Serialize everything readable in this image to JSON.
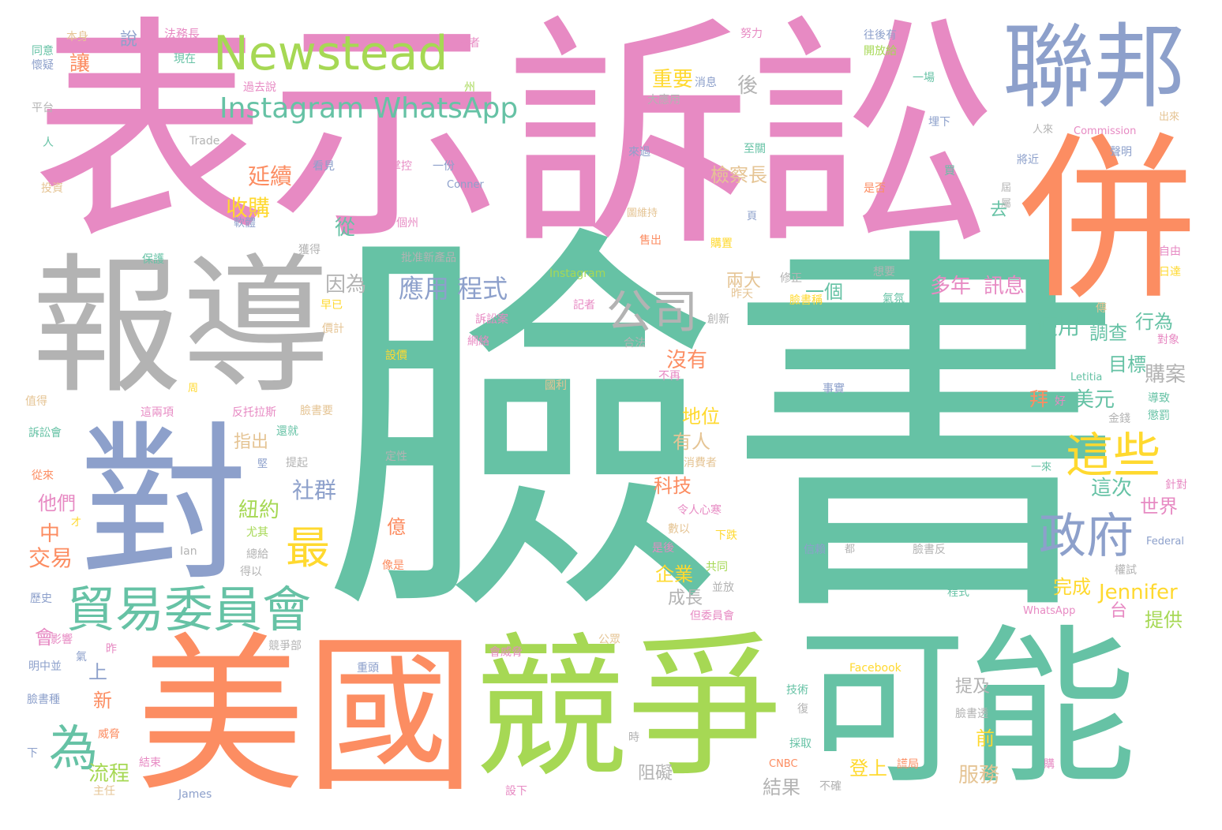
{
  "colors": {
    "teal": "#66c2a5",
    "orange": "#fc8d62",
    "blue": "#8da0cb",
    "pink": "#e78ac3",
    "green": "#a6d854",
    "yellow": "#ffd92f",
    "tan": "#e5c494",
    "gray": "#b3b3b3"
  },
  "words": [
    {
      "text": "臉書",
      "color": "teal"
    },
    {
      "text": "表示",
      "color": "pink"
    },
    {
      "text": "訴訟",
      "color": "pink"
    },
    {
      "text": "報導",
      "color": "gray"
    },
    {
      "text": "美國",
      "color": "orange"
    },
    {
      "text": "競爭",
      "color": "green"
    },
    {
      "text": "可能",
      "color": "teal"
    },
    {
      "text": "併",
      "color": "orange"
    },
    {
      "text": "對",
      "color": "blue"
    },
    {
      "text": "聯邦",
      "color": "blue"
    },
    {
      "text": "Newstead",
      "color": "green"
    },
    {
      "text": "Instagram WhatsApp",
      "color": "teal"
    },
    {
      "text": "公司",
      "color": "gray"
    },
    {
      "text": "貿易委員會",
      "color": "teal"
    },
    {
      "text": "政府",
      "color": "blue"
    },
    {
      "text": "這些",
      "color": "yellow"
    },
    {
      "text": "為",
      "color": "teal"
    },
    {
      "text": "最",
      "color": "yellow"
    },
    {
      "text": "應用 程式",
      "color": "blue"
    },
    {
      "text": "Jennifer",
      "color": "yellow"
    },
    {
      "text": "延續",
      "color": "orange"
    },
    {
      "text": "收購",
      "color": "yellow"
    },
    {
      "text": "檢察長",
      "color": "tan"
    },
    {
      "text": "重要",
      "color": "yellow"
    },
    {
      "text": "因為",
      "color": "gray"
    },
    {
      "text": "多年",
      "color": "pink"
    },
    {
      "text": "訊息",
      "color": "pink"
    },
    {
      "text": "使用",
      "color": "teal"
    },
    {
      "text": "調查",
      "color": "teal"
    },
    {
      "text": "行為",
      "color": "teal"
    },
    {
      "text": "目標",
      "color": "teal"
    },
    {
      "text": "購案",
      "color": "gray"
    },
    {
      "text": "美元",
      "color": "teal"
    },
    {
      "text": "地位",
      "color": "yellow"
    },
    {
      "text": "有人",
      "color": "tan"
    },
    {
      "text": "社群",
      "color": "blue"
    },
    {
      "text": "紐約",
      "color": "green"
    },
    {
      "text": "科技",
      "color": "orange"
    },
    {
      "text": "企業",
      "color": "yellow"
    },
    {
      "text": "成長",
      "color": "gray"
    },
    {
      "text": "完成",
      "color": "yellow"
    },
    {
      "text": "提供",
      "color": "green"
    },
    {
      "text": "世界",
      "color": "pink"
    },
    {
      "text": "這次",
      "color": "teal"
    },
    {
      "text": "沒有",
      "color": "orange"
    },
    {
      "text": "兩大",
      "color": "tan"
    },
    {
      "text": "一個",
      "color": "teal"
    },
    {
      "text": "交易",
      "color": "orange"
    },
    {
      "text": "他們",
      "color": "pink"
    },
    {
      "text": "流程",
      "color": "green"
    },
    {
      "text": "服務",
      "color": "tan"
    },
    {
      "text": "登上",
      "color": "yellow"
    },
    {
      "text": "結果",
      "color": "gray"
    },
    {
      "text": "阻礙",
      "color": "gray"
    },
    {
      "text": "指出",
      "color": "tan"
    },
    {
      "text": "從",
      "color": "teal"
    },
    {
      "text": "讓",
      "color": "orange"
    },
    {
      "text": "後",
      "color": "gray"
    },
    {
      "text": "中",
      "color": "orange"
    },
    {
      "text": "上",
      "color": "blue"
    },
    {
      "text": "新",
      "color": "orange"
    },
    {
      "text": "會",
      "color": "pink"
    },
    {
      "text": "億",
      "color": "orange"
    },
    {
      "text": "前",
      "color": "yellow"
    },
    {
      "text": "提及",
      "color": "gray"
    },
    {
      "text": "去",
      "color": "teal"
    },
    {
      "text": "拜",
      "color": "orange"
    },
    {
      "text": "台",
      "color": "pink"
    },
    {
      "text": "說",
      "color": "blue"
    },
    {
      "text": "法務長",
      "color": "pink"
    },
    {
      "text": "本身",
      "color": "tan"
    },
    {
      "text": "同意",
      "color": "teal"
    },
    {
      "text": "懷疑",
      "color": "blue"
    },
    {
      "text": "現在",
      "color": "teal"
    },
    {
      "text": "主義者",
      "color": "pink"
    },
    {
      "text": "努力",
      "color": "pink"
    },
    {
      "text": "往後有",
      "color": "blue"
    },
    {
      "text": "開放給",
      "color": "green"
    },
    {
      "text": "過去說",
      "color": "pink"
    },
    {
      "text": "消息",
      "color": "blue"
    },
    {
      "text": "州",
      "color": "green"
    },
    {
      "text": "一場",
      "color": "teal"
    },
    {
      "text": "平台",
      "color": "gray"
    },
    {
      "text": "大應用",
      "color": "gray"
    },
    {
      "text": "人",
      "color": "teal"
    },
    {
      "text": "Trade",
      "color": "gray"
    },
    {
      "text": "Commission",
      "color": "pink"
    },
    {
      "text": "出來",
      "color": "tan"
    },
    {
      "text": "人來",
      "color": "gray"
    },
    {
      "text": "埋下",
      "color": "blue"
    },
    {
      "text": "聲明",
      "color": "blue"
    },
    {
      "text": "投資",
      "color": "tan"
    },
    {
      "text": "看見",
      "color": "blue"
    },
    {
      "text": "掌控",
      "color": "pink"
    },
    {
      "text": "一份",
      "color": "blue"
    },
    {
      "text": "Conner",
      "color": "blue"
    },
    {
      "text": "來過",
      "color": "blue"
    },
    {
      "text": "至關",
      "color": "teal"
    },
    {
      "text": "買",
      "color": "teal"
    },
    {
      "text": "是否",
      "color": "orange"
    },
    {
      "text": "將近",
      "color": "blue"
    },
    {
      "text": "軟體",
      "color": "blue"
    },
    {
      "text": "個州",
      "color": "pink"
    },
    {
      "text": "獲得",
      "color": "gray"
    },
    {
      "text": "保護",
      "color": "teal"
    },
    {
      "text": "批准新產品",
      "color": "gray"
    },
    {
      "text": "Instagram",
      "color": "green"
    },
    {
      "text": "售出",
      "color": "orange"
    },
    {
      "text": "購置",
      "color": "yellow"
    },
    {
      "text": "修正",
      "color": "gray"
    },
    {
      "text": "想要",
      "color": "gray"
    },
    {
      "text": "昨天",
      "color": "tan"
    },
    {
      "text": "臉書稱",
      "color": "yellow"
    },
    {
      "text": "氣氛",
      "color": "teal"
    },
    {
      "text": "自由",
      "color": "pink"
    },
    {
      "text": "日達",
      "color": "yellow"
    },
    {
      "text": "傳",
      "color": "tan"
    },
    {
      "text": "對象",
      "color": "pink"
    },
    {
      "text": "創新",
      "color": "gray"
    },
    {
      "text": "記者",
      "color": "pink"
    },
    {
      "text": "訴訟案",
      "color": "pink"
    },
    {
      "text": "網絡",
      "color": "pink"
    },
    {
      "text": "早已",
      "color": "yellow"
    },
    {
      "text": "價計",
      "color": "tan"
    },
    {
      "text": "設價",
      "color": "yellow"
    },
    {
      "text": "合法",
      "color": "gray"
    },
    {
      "text": "國利",
      "color": "tan"
    },
    {
      "text": "不再",
      "color": "pink"
    },
    {
      "text": "Letitia",
      "color": "teal"
    },
    {
      "text": "事實",
      "color": "blue"
    },
    {
      "text": "好",
      "color": "pink"
    },
    {
      "text": "導致",
      "color": "teal"
    },
    {
      "text": "懲罰",
      "color": "teal"
    },
    {
      "text": "金錢",
      "color": "gray"
    },
    {
      "text": "值得",
      "color": "tan"
    },
    {
      "text": "訴訟會",
      "color": "teal"
    },
    {
      "text": "從來",
      "color": "orange"
    },
    {
      "text": "這兩項",
      "color": "pink"
    },
    {
      "text": "反托拉斯",
      "color": "pink"
    },
    {
      "text": "臉書要",
      "color": "tan"
    },
    {
      "text": "還就",
      "color": "teal"
    },
    {
      "text": "提起",
      "color": "gray"
    },
    {
      "text": "定性",
      "color": "gray"
    },
    {
      "text": "消費者",
      "color": "tan"
    },
    {
      "text": "一來",
      "color": "teal"
    },
    {
      "text": "針對",
      "color": "pink"
    },
    {
      "text": "令人心寒",
      "color": "pink"
    },
    {
      "text": "數以",
      "color": "tan"
    },
    {
      "text": "是後",
      "color": "pink"
    },
    {
      "text": "下跌",
      "color": "yellow"
    },
    {
      "text": "共同",
      "color": "green"
    },
    {
      "text": "並放",
      "color": "gray"
    },
    {
      "text": "信賴",
      "color": "blue"
    },
    {
      "text": "臉書反",
      "color": "gray"
    },
    {
      "text": "Federal",
      "color": "blue"
    },
    {
      "text": "權試",
      "color": "gray"
    },
    {
      "text": "程式",
      "color": "teal"
    },
    {
      "text": "但委員會",
      "color": "pink"
    },
    {
      "text": "WhatsApp",
      "color": "pink"
    },
    {
      "text": "Ian",
      "color": "gray"
    },
    {
      "text": "尤其",
      "color": "green"
    },
    {
      "text": "總給",
      "color": "gray"
    },
    {
      "text": "得以",
      "color": "gray"
    },
    {
      "text": "像是",
      "color": "orange"
    },
    {
      "text": "歷史",
      "color": "blue"
    },
    {
      "text": "影響",
      "color": "pink"
    },
    {
      "text": "氣",
      "color": "blue"
    },
    {
      "text": "昨",
      "color": "pink"
    },
    {
      "text": "明中並",
      "color": "blue"
    },
    {
      "text": "會威脅",
      "color": "pink"
    },
    {
      "text": "重頭",
      "color": "blue"
    },
    {
      "text": "競爭部",
      "color": "gray"
    },
    {
      "text": "公眾",
      "color": "tan"
    },
    {
      "text": "Facebook",
      "color": "yellow"
    },
    {
      "text": "技術",
      "color": "teal"
    },
    {
      "text": "復",
      "color": "gray"
    },
    {
      "text": "臉書透",
      "color": "gray"
    },
    {
      "text": "臉書種",
      "color": "blue"
    },
    {
      "text": "威脅",
      "color": "orange"
    },
    {
      "text": "下",
      "color": "blue"
    },
    {
      "text": "結束",
      "color": "pink"
    },
    {
      "text": "設下",
      "color": "pink"
    },
    {
      "text": "時",
      "color": "gray"
    },
    {
      "text": "採取",
      "color": "teal"
    },
    {
      "text": "CNBC",
      "color": "orange"
    },
    {
      "text": "不確",
      "color": "gray"
    },
    {
      "text": "謊局",
      "color": "orange"
    },
    {
      "text": "購",
      "color": "pink"
    },
    {
      "text": "James",
      "color": "blue"
    },
    {
      "text": "主任",
      "color": "tan"
    },
    {
      "text": "才",
      "color": "yellow"
    },
    {
      "text": "堅",
      "color": "blue"
    },
    {
      "text": "都",
      "color": "gray"
    },
    {
      "text": "圖維持",
      "color": "tan"
    },
    {
      "text": "頁",
      "color": "blue"
    },
    {
      "text": "屆",
      "color": "gray"
    },
    {
      "text": "屬",
      "color": "gray"
    },
    {
      "text": "周",
      "color": "yellow"
    }
  ]
}
